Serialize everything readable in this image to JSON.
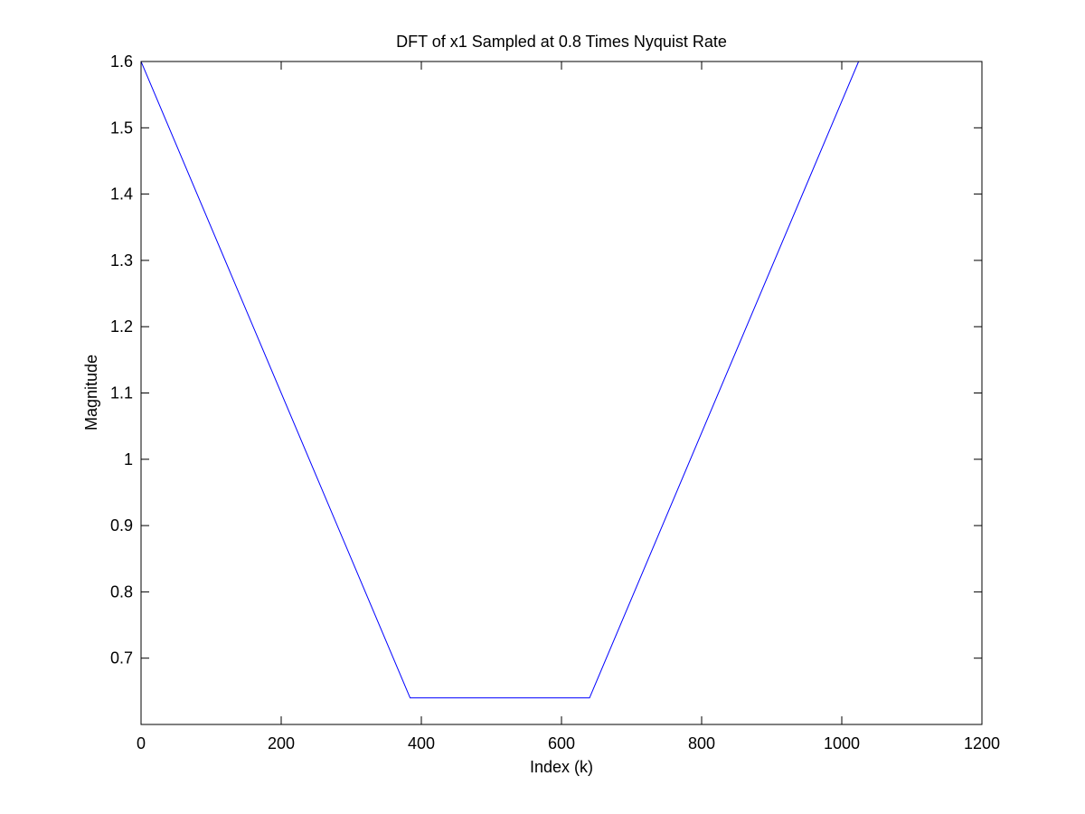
{
  "chart_data": {
    "type": "line",
    "title": "DFT of x1 Sampled at 0.8 Times Nyquist Rate",
    "xlabel": "Index (k)",
    "ylabel": "Magnitude",
    "xlim": [
      0,
      1200
    ],
    "ylim": [
      0.6,
      1.6
    ],
    "xticks": [
      0,
      200,
      400,
      600,
      800,
      1000,
      1200
    ],
    "yticks": [
      0.7,
      0.8,
      0.9,
      1.0,
      1.1,
      1.2,
      1.3,
      1.4,
      1.5,
      1.6
    ],
    "xtick_labels": [
      "0",
      "200",
      "400",
      "600",
      "800",
      "1000",
      "1200"
    ],
    "ytick_labels": [
      "0.7",
      "0.8",
      "0.9",
      "1",
      "1.1",
      "1.2",
      "1.3",
      "1.4",
      "1.5",
      "1.6"
    ],
    "grid": false,
    "series": [
      {
        "color": "#0000ff",
        "x": [
          0,
          384,
          640,
          1024
        ],
        "y": [
          1.6,
          0.64,
          0.64,
          1.6
        ]
      }
    ]
  }
}
